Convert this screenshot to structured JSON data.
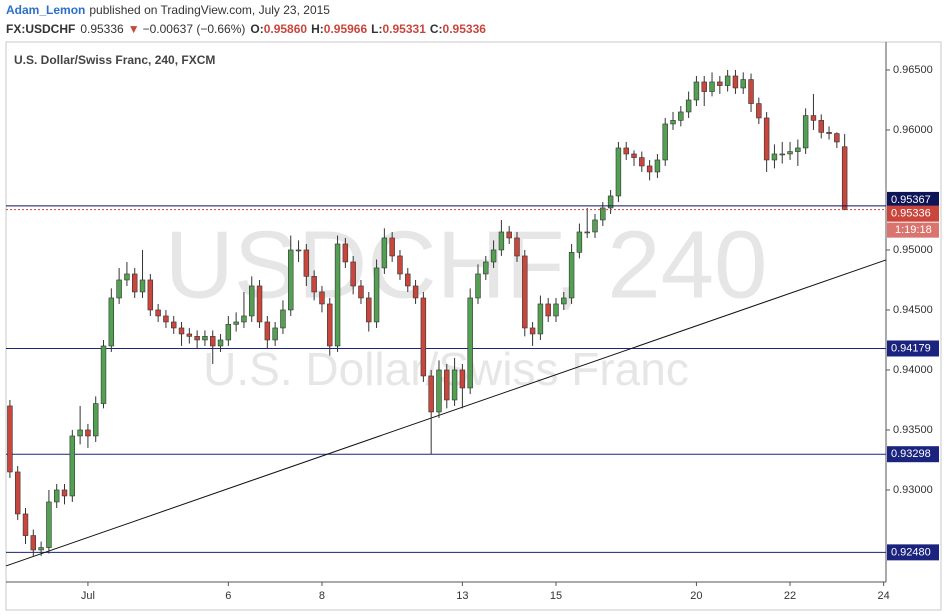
{
  "header": {
    "author": "Adam_Lemon",
    "published": "published on TradingView.com, July 23, 2015",
    "symbol": "FX:USDCHF",
    "last": "0.95336",
    "arrow": "▼",
    "change": "−0.00637 (−0.66%)",
    "o_label": "O:",
    "open": "0.95860",
    "h_label": "H:",
    "high": "0.95966",
    "l_label": "L:",
    "low": "0.95331",
    "c_label": "C:",
    "close": "0.95336"
  },
  "chart_data": {
    "type": "candlestick",
    "title": "U.S. Dollar/Swiss Franc, 240, FXCM",
    "watermark_symbol": "USDCHF, 240",
    "watermark_name": "U.S. Dollar/Swiss Franc",
    "up_color": "#53a053",
    "down_color": "#c9463d",
    "level_color": "#1a237e",
    "grid": false,
    "xlim": [
      -0.5,
      112.3
    ],
    "ylim": [
      0.92233,
      0.96733
    ],
    "xticks": [
      {
        "value": 10,
        "label": "Jul"
      },
      {
        "value": 28,
        "label": "6"
      },
      {
        "value": 40,
        "label": "8"
      },
      {
        "value": 58,
        "label": "13"
      },
      {
        "value": 70,
        "label": "15"
      },
      {
        "value": 88,
        "label": "20"
      },
      {
        "value": 100,
        "label": "22"
      },
      {
        "value": 112,
        "label": "24"
      }
    ],
    "yticks": [
      {
        "value": 0.965,
        "label": "0.96500"
      },
      {
        "value": 0.96,
        "label": "0.96000"
      },
      {
        "value": 0.95,
        "label": "0.95000"
      },
      {
        "value": 0.945,
        "label": "0.94500"
      },
      {
        "value": 0.94,
        "label": "0.94000"
      },
      {
        "value": 0.935,
        "label": "0.93500"
      },
      {
        "value": 0.93,
        "label": "0.93000"
      }
    ],
    "levels": [
      {
        "value": 0.94179,
        "label": "0.94179"
      },
      {
        "value": 0.93298,
        "label": "0.93298"
      },
      {
        "value": 0.9248,
        "label": "0.92480"
      }
    ],
    "price_line": {
      "value": 0.95367,
      "label": "0.95367"
    },
    "last_price": {
      "value": 0.95336,
      "label": "0.95336",
      "countdown": "1:19:18"
    },
    "trendline": {
      "x": [
        -0.5,
        112.3
      ],
      "y": [
        0.92367,
        0.94917
      ]
    },
    "open": [
      0.937,
      0.9315,
      0.928,
      0.9262,
      0.925,
      0.9252,
      0.929,
      0.93,
      0.9295,
      0.9345,
      0.935,
      0.9345,
      0.9372,
      0.942,
      0.946,
      0.9475,
      0.948,
      0.9465,
      0.9475,
      0.945,
      0.9445,
      0.944,
      0.9435,
      0.943,
      0.9428,
      0.9425,
      0.9428,
      0.942,
      0.9425,
      0.9438,
      0.944,
      0.9445,
      0.947,
      0.944,
      0.9425,
      0.9435,
      0.945,
      0.95,
      0.95,
      0.9478,
      0.9465,
      0.9455,
      0.942,
      0.9505,
      0.949,
      0.947,
      0.946,
      0.944,
      0.9485,
      0.951,
      0.9495,
      0.948,
      0.947,
      0.946,
      0.9395,
      0.9365,
      0.94,
      0.9375,
      0.94,
      0.9385,
      0.946,
      0.948,
      0.949,
      0.95,
      0.9515,
      0.951,
      0.9495,
      0.9435,
      0.943,
      0.9455,
      0.9445,
      0.9455,
      0.946,
      0.9498,
      0.9515,
      0.9515,
      0.9525,
      0.9535,
      0.9545,
      0.9585,
      0.958,
      0.9577,
      0.957,
      0.9565,
      0.9575,
      0.9605,
      0.9608,
      0.9615,
      0.9625,
      0.964,
      0.9632,
      0.964,
      0.9637,
      0.9645,
      0.9635,
      0.9642,
      0.9622,
      0.961,
      0.9575,
      0.958,
      0.958,
      0.9582,
      0.9585,
      0.9612,
      0.9608,
      0.9598,
      0.9597,
      0.9586
    ],
    "high": [
      0.9375,
      0.932,
      0.9285,
      0.9267,
      0.9257,
      0.93,
      0.9305,
      0.9305,
      0.935,
      0.937,
      0.9355,
      0.9378,
      0.9425,
      0.9468,
      0.9485,
      0.949,
      0.9485,
      0.95,
      0.948,
      0.9455,
      0.945,
      0.9445,
      0.944,
      0.9435,
      0.9433,
      0.9433,
      0.9433,
      0.943,
      0.9445,
      0.9448,
      0.9465,
      0.9478,
      0.9475,
      0.9445,
      0.944,
      0.9458,
      0.9512,
      0.9508,
      0.9505,
      0.9483,
      0.947,
      0.946,
      0.9512,
      0.951,
      0.9495,
      0.9475,
      0.9465,
      0.9492,
      0.9518,
      0.9515,
      0.95,
      0.9485,
      0.9475,
      0.9465,
      0.94,
      0.9408,
      0.9405,
      0.941,
      0.9405,
      0.9468,
      0.9488,
      0.9495,
      0.9508,
      0.9525,
      0.952,
      0.9515,
      0.95,
      0.944,
      0.9462,
      0.946,
      0.946,
      0.9465,
      0.9505,
      0.9522,
      0.9535,
      0.953,
      0.954,
      0.955,
      0.959,
      0.959,
      0.9583,
      0.9582,
      0.9575,
      0.958,
      0.961,
      0.9615,
      0.962,
      0.9632,
      0.9645,
      0.9645,
      0.9648,
      0.9645,
      0.965,
      0.965,
      0.9648,
      0.9647,
      0.9627,
      0.9615,
      0.9588,
      0.959,
      0.959,
      0.9592,
      0.9618,
      0.963,
      0.9613,
      0.9603,
      0.9598,
      0.95966
    ],
    "low": [
      0.931,
      0.9275,
      0.9255,
      0.9245,
      0.9245,
      0.9247,
      0.9285,
      0.9288,
      0.929,
      0.9338,
      0.9335,
      0.934,
      0.9368,
      0.9415,
      0.9455,
      0.947,
      0.946,
      0.946,
      0.9445,
      0.944,
      0.9435,
      0.943,
      0.942,
      0.9422,
      0.9418,
      0.942,
      0.9405,
      0.9415,
      0.942,
      0.9432,
      0.9435,
      0.944,
      0.9435,
      0.9418,
      0.942,
      0.943,
      0.9445,
      0.949,
      0.947,
      0.9458,
      0.9448,
      0.9412,
      0.9415,
      0.9485,
      0.9463,
      0.9455,
      0.9432,
      0.9435,
      0.948,
      0.949,
      0.9475,
      0.9465,
      0.9455,
      0.939,
      0.933,
      0.936,
      0.9368,
      0.937,
      0.9368,
      0.938,
      0.9455,
      0.9475,
      0.9485,
      0.9495,
      0.9505,
      0.949,
      0.9428,
      0.942,
      0.9425,
      0.944,
      0.944,
      0.945,
      0.9455,
      0.9493,
      0.951,
      0.951,
      0.952,
      0.953,
      0.954,
      0.9575,
      0.957,
      0.9565,
      0.9558,
      0.956,
      0.957,
      0.96,
      0.9603,
      0.961,
      0.962,
      0.962,
      0.9628,
      0.963,
      0.9632,
      0.963,
      0.963,
      0.9615,
      0.9605,
      0.9565,
      0.9568,
      0.9572,
      0.9575,
      0.957,
      0.958,
      0.96,
      0.9593,
      0.9592,
      0.9585,
      0.95331
    ],
    "close": [
      0.9315,
      0.928,
      0.9262,
      0.925,
      0.9252,
      0.929,
      0.93,
      0.9295,
      0.9345,
      0.935,
      0.9345,
      0.9372,
      0.942,
      0.946,
      0.9475,
      0.948,
      0.9465,
      0.9475,
      0.945,
      0.9445,
      0.944,
      0.9435,
      0.943,
      0.9428,
      0.9425,
      0.9428,
      0.942,
      0.9425,
      0.9438,
      0.944,
      0.9445,
      0.947,
      0.944,
      0.9425,
      0.9435,
      0.945,
      0.95,
      0.95,
      0.9478,
      0.9465,
      0.9455,
      0.942,
      0.9505,
      0.949,
      0.947,
      0.946,
      0.944,
      0.9485,
      0.951,
      0.9495,
      0.948,
      0.947,
      0.946,
      0.9395,
      0.9365,
      0.94,
      0.9375,
      0.94,
      0.9385,
      0.946,
      0.948,
      0.949,
      0.95,
      0.9515,
      0.951,
      0.9495,
      0.9435,
      0.943,
      0.9455,
      0.9445,
      0.9455,
      0.946,
      0.9498,
      0.9515,
      0.9515,
      0.9525,
      0.9535,
      0.9545,
      0.9585,
      0.958,
      0.9577,
      0.957,
      0.9565,
      0.9575,
      0.9605,
      0.9608,
      0.9615,
      0.9625,
      0.964,
      0.9632,
      0.964,
      0.9637,
      0.9645,
      0.9635,
      0.9642,
      0.9622,
      0.961,
      0.9575,
      0.958,
      0.958,
      0.9582,
      0.9585,
      0.9612,
      0.9608,
      0.9598,
      0.9597,
      0.959,
      0.95336
    ]
  }
}
